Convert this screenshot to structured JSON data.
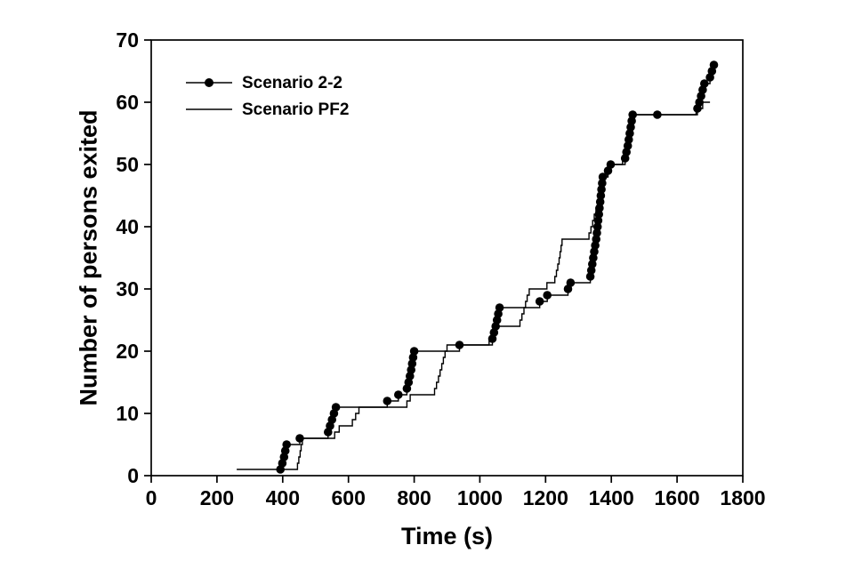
{
  "page": {
    "background": "#ffffff"
  },
  "chart_data": {
    "type": "line",
    "subtype": "step",
    "title": "",
    "xlabel": "Time (s)",
    "ylabel": "Number of persons exited",
    "xlim": [
      0,
      1800
    ],
    "ylim": [
      0,
      70
    ],
    "xticks": [
      0,
      200,
      400,
      600,
      800,
      1000,
      1200,
      1400,
      1600,
      1800
    ],
    "yticks": [
      0,
      10,
      20,
      30,
      40,
      50,
      60,
      70
    ],
    "grid": false,
    "legend_position": "inside-top-left",
    "axis_color": "#000000",
    "background_color": "#ffffff",
    "series": [
      {
        "name": "Scenario 2-2",
        "marker": "filled-circle",
        "line": "step",
        "color": "#000000",
        "points": [
          [
            393,
            1
          ],
          [
            399,
            2
          ],
          [
            404,
            3
          ],
          [
            408,
            4
          ],
          [
            412,
            5
          ],
          [
            452,
            6
          ],
          [
            538,
            7
          ],
          [
            544,
            8
          ],
          [
            550,
            9
          ],
          [
            556,
            10
          ],
          [
            562,
            11
          ],
          [
            718,
            12
          ],
          [
            752,
            13
          ],
          [
            778,
            14
          ],
          [
            783,
            15
          ],
          [
            787,
            16
          ],
          [
            791,
            17
          ],
          [
            794,
            18
          ],
          [
            797,
            19
          ],
          [
            800,
            20
          ],
          [
            938,
            21
          ],
          [
            1038,
            22
          ],
          [
            1043,
            23
          ],
          [
            1048,
            24
          ],
          [
            1052,
            25
          ],
          [
            1056,
            26
          ],
          [
            1060,
            27
          ],
          [
            1182,
            28
          ],
          [
            1205,
            29
          ],
          [
            1268,
            30
          ],
          [
            1276,
            31
          ],
          [
            1336,
            32
          ],
          [
            1339,
            33
          ],
          [
            1342,
            34
          ],
          [
            1345,
            35
          ],
          [
            1348,
            36
          ],
          [
            1351,
            37
          ],
          [
            1354,
            38
          ],
          [
            1356,
            39
          ],
          [
            1358,
            40
          ],
          [
            1360,
            41
          ],
          [
            1362,
            42
          ],
          [
            1364,
            43
          ],
          [
            1366,
            44
          ],
          [
            1368,
            45
          ],
          [
            1370,
            46
          ],
          [
            1372,
            47
          ],
          [
            1374,
            48
          ],
          [
            1390,
            49
          ],
          [
            1398,
            50
          ],
          [
            1442,
            51
          ],
          [
            1446,
            52
          ],
          [
            1450,
            53
          ],
          [
            1453,
            54
          ],
          [
            1456,
            55
          ],
          [
            1459,
            56
          ],
          [
            1462,
            57
          ],
          [
            1465,
            58
          ],
          [
            1540,
            58
          ],
          [
            1662,
            59
          ],
          [
            1668,
            60
          ],
          [
            1673,
            61
          ],
          [
            1678,
            62
          ],
          [
            1683,
            63
          ],
          [
            1700,
            64
          ],
          [
            1706,
            65
          ],
          [
            1712,
            66
          ]
        ]
      },
      {
        "name": "Scenario PF2",
        "marker": "none",
        "line": "step",
        "color": "#000000",
        "points": [
          [
            260,
            1
          ],
          [
            445,
            2
          ],
          [
            449,
            3
          ],
          [
            453,
            4
          ],
          [
            456,
            5
          ],
          [
            460,
            6
          ],
          [
            558,
            7
          ],
          [
            572,
            8
          ],
          [
            612,
            9
          ],
          [
            622,
            10
          ],
          [
            632,
            11
          ],
          [
            778,
            12
          ],
          [
            788,
            13
          ],
          [
            862,
            14
          ],
          [
            868,
            15
          ],
          [
            874,
            16
          ],
          [
            879,
            17
          ],
          [
            884,
            18
          ],
          [
            889,
            19
          ],
          [
            894,
            20
          ],
          [
            900,
            21
          ],
          [
            1028,
            22
          ],
          [
            1038,
            23
          ],
          [
            1048,
            24
          ],
          [
            1122,
            25
          ],
          [
            1128,
            26
          ],
          [
            1134,
            27
          ],
          [
            1139,
            28
          ],
          [
            1144,
            29
          ],
          [
            1150,
            30
          ],
          [
            1204,
            31
          ],
          [
            1228,
            32
          ],
          [
            1233,
            33
          ],
          [
            1237,
            34
          ],
          [
            1241,
            35
          ],
          [
            1244,
            36
          ],
          [
            1247,
            37
          ],
          [
            1250,
            38
          ],
          [
            1332,
            39
          ],
          [
            1338,
            40
          ],
          [
            1343,
            41
          ],
          [
            1348,
            42
          ],
          [
            1353,
            43
          ],
          [
            1358,
            44
          ],
          [
            1363,
            45
          ],
          [
            1368,
            46
          ],
          [
            1373,
            47
          ],
          [
            1378,
            48
          ],
          [
            1386,
            49
          ],
          [
            1394,
            50
          ],
          [
            1434,
            51
          ],
          [
            1440,
            52
          ],
          [
            1445,
            53
          ],
          [
            1450,
            54
          ],
          [
            1454,
            55
          ],
          [
            1458,
            56
          ],
          [
            1461,
            57
          ],
          [
            1464,
            58
          ],
          [
            1658,
            59
          ],
          [
            1678,
            60
          ],
          [
            1700,
            60
          ]
        ]
      }
    ]
  }
}
